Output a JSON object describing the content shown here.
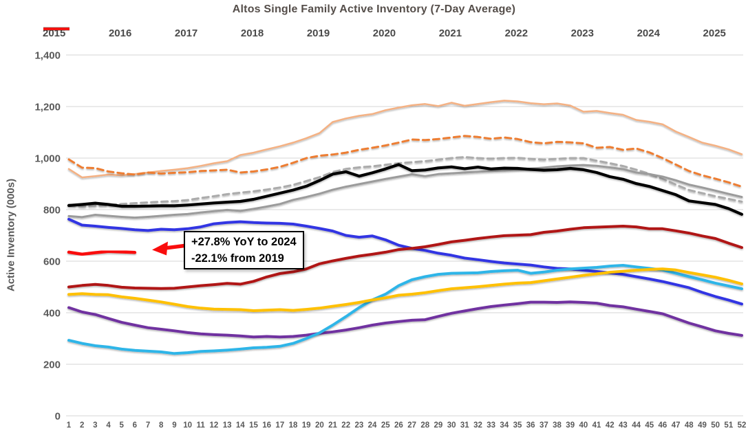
{
  "title": "Altos Single Family Active Inventory (7-Day Average)",
  "annotation": {
    "line1": "+27.8% YoY to 2024",
    "line2": "-22.1% from 2019",
    "arrow_color": "#F90D0D"
  },
  "y_axis": {
    "label": "Active Inventory (000s)",
    "tick_labels": [
      "0",
      "200",
      "400",
      "600",
      "800",
      "1,000",
      "1,200",
      "1,400"
    ],
    "tick_values": [
      0,
      200,
      400,
      600,
      800,
      1000,
      1200,
      1400
    ]
  },
  "x_axis": {
    "tick_labels": [
      "1",
      "2",
      "3",
      "4",
      "5",
      "6",
      "7",
      "8",
      "9",
      "10",
      "11",
      "12",
      "13",
      "14",
      "15",
      "16",
      "17",
      "18",
      "19",
      "20",
      "21",
      "22",
      "23",
      "24",
      "25",
      "26",
      "27",
      "28",
      "29",
      "30",
      "31",
      "32",
      "33",
      "34",
      "35",
      "36",
      "37",
      "38",
      "39",
      "40",
      "41",
      "42",
      "43",
      "44",
      "45",
      "46",
      "47",
      "48",
      "49",
      "50",
      "51",
      "52"
    ]
  },
  "colors": {
    "gridline": "#D6D6D6",
    "axis_text": "#595959",
    "title_text": "#554E4A",
    "legend_text": "#4A4A4A"
  },
  "chart_data": {
    "type": "line",
    "title": "Altos Single Family Active Inventory (7-Day Average)",
    "xlabel": "",
    "ylabel": "Active Inventory (000s)",
    "xlim": [
      1,
      52
    ],
    "ylim": [
      0,
      1400
    ],
    "grid": "horizontal",
    "legend_position": "top",
    "x": [
      1,
      2,
      3,
      4,
      5,
      6,
      7,
      8,
      9,
      10,
      11,
      12,
      13,
      14,
      15,
      16,
      17,
      18,
      19,
      20,
      21,
      22,
      23,
      24,
      25,
      26,
      27,
      28,
      29,
      30,
      31,
      32,
      33,
      34,
      35,
      36,
      37,
      38,
      39,
      40,
      41,
      42,
      43,
      44,
      45,
      46,
      47,
      48,
      49,
      50,
      51,
      52
    ],
    "series": [
      {
        "name": "2015",
        "color": "#F4B183",
        "dash": false,
        "width": 2.5,
        "values": [
          958,
          925,
          930,
          936,
          933,
          938,
          944,
          950,
          955,
          961,
          970,
          980,
          988,
          1012,
          1021,
          1034,
          1046,
          1060,
          1077,
          1097,
          1140,
          1154,
          1164,
          1171,
          1186,
          1196,
          1205,
          1210,
          1202,
          1215,
          1203,
          1210,
          1217,
          1223,
          1220,
          1213,
          1209,
          1212,
          1204,
          1180,
          1183,
          1175,
          1168,
          1148,
          1141,
          1131,
          1103,
          1082,
          1060,
          1048,
          1034,
          1015
        ]
      },
      {
        "name": "2016",
        "color": "#ED7D31",
        "dash": true,
        "width": 3,
        "values": [
          995,
          963,
          961,
          948,
          941,
          936,
          944,
          940,
          943,
          945,
          950,
          952,
          955,
          944,
          948,
          956,
          966,
          982,
          1000,
          1009,
          1014,
          1021,
          1032,
          1040,
          1049,
          1060,
          1072,
          1070,
          1074,
          1080,
          1086,
          1082,
          1075,
          1080,
          1074,
          1062,
          1057,
          1063,
          1061,
          1057,
          1040,
          1043,
          1032,
          1037,
          1022,
          1000,
          975,
          950,
          933,
          920,
          906,
          889
        ]
      },
      {
        "name": "2017",
        "color": "#ABABAB",
        "dash": true,
        "width": 3,
        "values": [
          819,
          812,
          815,
          818,
          822,
          825,
          828,
          831,
          833,
          837,
          845,
          852,
          860,
          866,
          871,
          878,
          886,
          896,
          911,
          926,
          946,
          958,
          964,
          968,
          974,
          980,
          984,
          988,
          994,
          1000,
          1004,
          1000,
          998,
          1000,
          1001,
          997,
          994,
          997,
          1000,
          1000,
          990,
          980,
          969,
          955,
          939,
          919,
          897,
          876,
          864,
          852,
          842,
          831
        ]
      },
      {
        "name": "2018",
        "color": "#9B9B9B",
        "dash": false,
        "width": 3,
        "values": [
          775,
          771,
          780,
          776,
          772,
          769,
          772,
          776,
          780,
          783,
          789,
          794,
          799,
          795,
          803,
          812,
          822,
          838,
          849,
          862,
          877,
          889,
          899,
          909,
          919,
          928,
          937,
          930,
          938,
          941,
          944,
          947,
          950,
          952,
          955,
          959,
          963,
          968,
          971,
          973,
          970,
          964,
          957,
          944,
          938,
          928,
          914,
          897,
          886,
          874,
          861,
          849
        ]
      },
      {
        "name": "2019",
        "color": "#000000",
        "dash": false,
        "width": 4.2,
        "values": [
          816,
          820,
          825,
          820,
          813,
          813,
          814,
          815,
          815,
          818,
          822,
          826,
          829,
          832,
          840,
          852,
          864,
          876,
          891,
          913,
          938,
          947,
          930,
          943,
          958,
          975,
          951,
          954,
          962,
          966,
          959,
          965,
          958,
          961,
          960,
          956,
          953,
          955,
          960,
          955,
          944,
          928,
          918,
          901,
          890,
          874,
          858,
          834,
          827,
          820,
          804,
          782
        ]
      },
      {
        "name": "2020",
        "color": "#3036E3",
        "dash": false,
        "width": 4,
        "values": [
          763,
          740,
          736,
          731,
          727,
          722,
          719,
          724,
          722,
          726,
          733,
          745,
          750,
          753,
          750,
          748,
          747,
          744,
          736,
          727,
          717,
          700,
          693,
          698,
          683,
          662,
          650,
          642,
          631,
          623,
          612,
          606,
          599,
          593,
          589,
          585,
          578,
          572,
          570,
          565,
          560,
          555,
          549,
          540,
          531,
          521,
          509,
          497,
          479,
          463,
          449,
          434
        ]
      },
      {
        "name": "2021",
        "color": "#7030A0",
        "dash": false,
        "width": 4,
        "values": [
          420,
          403,
          393,
          378,
          363,
          352,
          342,
          336,
          330,
          323,
          318,
          315,
          313,
          310,
          306,
          308,
          306,
          308,
          313,
          320,
          326,
          333,
          342,
          352,
          360,
          366,
          371,
          373,
          386,
          398,
          407,
          416,
          424,
          430,
          435,
          441,
          441,
          440,
          442,
          440,
          437,
          428,
          423,
          414,
          405,
          396,
          378,
          360,
          345,
          330,
          320,
          312
        ]
      },
      {
        "name": "2022",
        "color": "#2FB5E8",
        "dash": false,
        "width": 4,
        "values": [
          293,
          281,
          272,
          267,
          259,
          254,
          251,
          248,
          242,
          245,
          250,
          252,
          255,
          259,
          264,
          266,
          270,
          281,
          300,
          322,
          352,
          385,
          420,
          450,
          472,
          505,
          528,
          540,
          549,
          553,
          554,
          555,
          560,
          563,
          565,
          553,
          558,
          565,
          570,
          573,
          576,
          581,
          584,
          578,
          572,
          566,
          553,
          540,
          528,
          515,
          504,
          493
        ]
      },
      {
        "name": "2023",
        "color": "#FFC000",
        "dash": false,
        "width": 4,
        "values": [
          471,
          474,
          471,
          470,
          462,
          456,
          449,
          442,
          433,
          424,
          418,
          414,
          413,
          412,
          408,
          410,
          412,
          409,
          413,
          418,
          425,
          432,
          440,
          450,
          458,
          468,
          472,
          478,
          486,
          493,
          497,
          501,
          506,
          511,
          515,
          517,
          524,
          531,
          538,
          545,
          551,
          557,
          561,
          565,
          568,
          570,
          566,
          556,
          547,
          538,
          526,
          512
        ]
      },
      {
        "name": "2024",
        "color": "#B01513",
        "dash": false,
        "width": 4,
        "values": [
          500,
          506,
          510,
          506,
          499,
          496,
          495,
          494,
          495,
          500,
          505,
          509,
          514,
          511,
          522,
          539,
          552,
          559,
          570,
          590,
          601,
          611,
          620,
          627,
          635,
          645,
          650,
          656,
          665,
          675,
          681,
          688,
          694,
          699,
          701,
          703,
          712,
          717,
          724,
          730,
          732,
          734,
          736,
          733,
          726,
          726,
          718,
          709,
          698,
          688,
          670,
          653
        ]
      },
      {
        "name": "2025",
        "color": "#F90D0D",
        "dash": false,
        "width": 4.5,
        "values": [
          635,
          627,
          633,
          638,
          636,
          634
        ]
      }
    ]
  }
}
